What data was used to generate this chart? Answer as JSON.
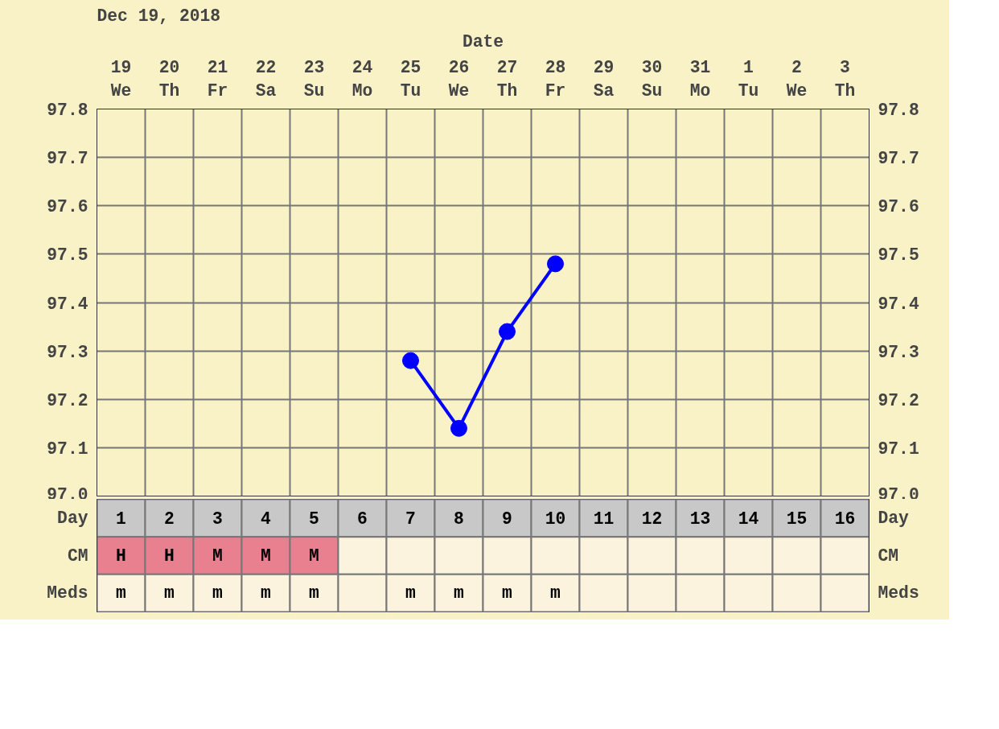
{
  "chart_data": [
    {
      "type": "line",
      "title": "Dec 19, 2018",
      "xlabel": "Date",
      "categories": [
        "19\nWe",
        "20\nTh",
        "21\nFr",
        "22\nSa",
        "23\nSu",
        "24\nMo",
        "25\nTu",
        "26\nWe",
        "27\nTh",
        "28\nFr",
        "29\nSa",
        "30\nSu",
        "31\nMo",
        "1\nTu",
        "2\nWe",
        "3\nTh"
      ],
      "ylim": [
        97.0,
        97.8
      ],
      "yticks": [
        {
          "value": 97.0,
          "label": "97.0"
        },
        97.1,
        97.2,
        97.3,
        97.4,
        97.5,
        97.6,
        97.7,
        97.8
      ],
      "y2lim": [
        97.0,
        97.8
      ],
      "y2ticks": [
        {
          "value": 97.0,
          "label": "97.0"
        },
        97.1,
        97.2,
        97.3,
        97.4,
        97.5,
        97.6,
        97.7,
        97.8
      ],
      "series": [
        {
          "color": "#0000ff",
          "values": [
            null,
            null,
            null,
            null,
            null,
            null,
            97.28,
            97.14,
            97.34,
            97.48,
            null,
            null,
            null,
            null,
            null,
            null
          ]
        }
      ],
      "marker": "circle",
      "line_style": "solid",
      "grid": true
    },
    {
      "type": "heatmap",
      "categories": [
        null,
        null,
        null,
        null,
        null,
        null,
        null,
        null,
        null,
        null,
        null,
        null,
        null,
        null,
        null,
        null
      ],
      "y_categories": [
        "Day",
        "CM",
        "Meds"
      ],
      "y2_categories": [
        "Day",
        "CM",
        "Meds"
      ],
      "colors": [
        "#c8c8c8",
        "#e9808f",
        "#fbf3de"
      ],
      "cells": [
        [
          null,
          null,
          null,
          null,
          null,
          null,
          null,
          null,
          null,
          null,
          null,
          null,
          null,
          null,
          null,
          null
        ],
        [
          null,
          null,
          null,
          null,
          null,
          null,
          null,
          null,
          null,
          null,
          null,
          null,
          null,
          null,
          null,
          null
        ],
        [
          null,
          null,
          null,
          null,
          null,
          null,
          null,
          null,
          null,
          null,
          null,
          null,
          null,
          null,
          null,
          null
        ]
      ],
      "cell_labels": [
        [
          "1",
          "2",
          "3",
          "4",
          "5",
          "6",
          "7",
          "8",
          "9",
          "10",
          "11",
          "12",
          "13",
          "14",
          "15",
          "16"
        ],
        [
          "H",
          "H",
          "M",
          "M",
          "M",
          null,
          null,
          null,
          null,
          null,
          null,
          null,
          null,
          null,
          null,
          null
        ],
        [
          "m",
          "m",
          "m",
          "m",
          "m",
          null,
          "m",
          "m",
          "m",
          "m",
          null,
          null,
          null,
          null,
          null,
          null
        ]
      ],
      "tick_labels": "y"
    }
  ]
}
